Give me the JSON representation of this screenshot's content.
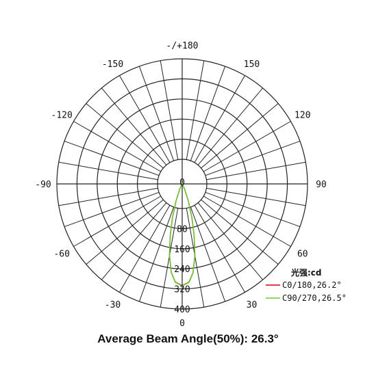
{
  "chart_data": {
    "type": "polar-line",
    "title": "",
    "caption": "Average Beam Angle(50%): 26.3°",
    "unit_label": "光强:cd",
    "r_ticks": [
      "0",
      "80",
      "160",
      "240",
      "320",
      "400"
    ],
    "r_range": [
      0,
      400
    ],
    "angle_labels": [
      {
        "angle": 0,
        "text": "0"
      },
      {
        "angle": 30,
        "text": "30"
      },
      {
        "angle": 60,
        "text": "60"
      },
      {
        "angle": 90,
        "text": "90"
      },
      {
        "angle": 120,
        "text": "120"
      },
      {
        "angle": 150,
        "text": "150"
      },
      {
        "angle": 180,
        "text": "-/+180"
      },
      {
        "angle": -150,
        "text": "-150"
      },
      {
        "angle": -120,
        "text": "-120"
      },
      {
        "angle": -90,
        "text": "-90"
      },
      {
        "angle": -60,
        "text": "-60"
      },
      {
        "angle": -30,
        "text": "-30"
      }
    ],
    "angle_spokes_every_deg": 10,
    "series": [
      {
        "name": "C0/180,26.2°",
        "color": "#cc0000",
        "points": [
          [
            -40,
            0
          ],
          [
            -30,
            6
          ],
          [
            -25,
            22
          ],
          [
            -20,
            70
          ],
          [
            -16,
            140
          ],
          [
            -13,
            210
          ],
          [
            -10,
            290
          ],
          [
            -7,
            355
          ],
          [
            -4,
            392
          ],
          [
            0,
            405
          ],
          [
            4,
            392
          ],
          [
            7,
            355
          ],
          [
            10,
            290
          ],
          [
            13,
            210
          ],
          [
            16,
            140
          ],
          [
            20,
            70
          ],
          [
            25,
            22
          ],
          [
            30,
            6
          ],
          [
            40,
            0
          ]
        ]
      },
      {
        "name": "C90/270,26.5°",
        "color": "#66cc33",
        "points": [
          [
            -40,
            0
          ],
          [
            -30,
            7
          ],
          [
            -25,
            24
          ],
          [
            -20,
            72
          ],
          [
            -16,
            142
          ],
          [
            -13,
            212
          ],
          [
            -10,
            292
          ],
          [
            -7,
            356
          ],
          [
            -4,
            393
          ],
          [
            0,
            406
          ],
          [
            4,
            393
          ],
          [
            7,
            356
          ],
          [
            10,
            292
          ],
          [
            13,
            212
          ],
          [
            16,
            142
          ],
          [
            20,
            72
          ],
          [
            25,
            24
          ],
          [
            30,
            7
          ],
          [
            40,
            0
          ]
        ]
      }
    ]
  }
}
